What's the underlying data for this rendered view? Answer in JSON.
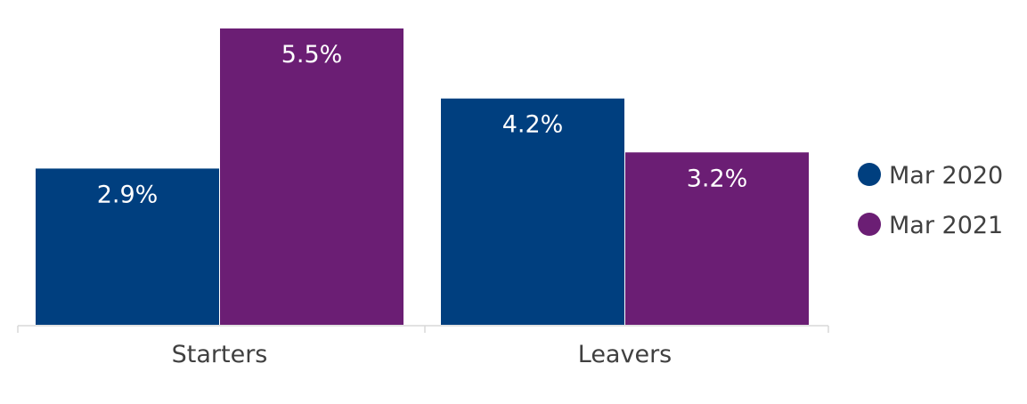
{
  "chart_data": {
    "type": "bar",
    "categories": [
      "Starters",
      "Leavers"
    ],
    "series": [
      {
        "name": "Mar 2020",
        "values": [
          2.9,
          4.2
        ],
        "labels": [
          "2.9%",
          "4.2%"
        ],
        "color": "#003f7f"
      },
      {
        "name": "Mar 2021",
        "values": [
          5.5,
          3.2
        ],
        "labels": [
          "5.5%",
          "3.2%"
        ],
        "color": "#6b1e74"
      }
    ],
    "title": "",
    "xlabel": "",
    "ylabel": "",
    "ylim": [
      0,
      5.5
    ],
    "grid": false,
    "legend_position": "right"
  }
}
